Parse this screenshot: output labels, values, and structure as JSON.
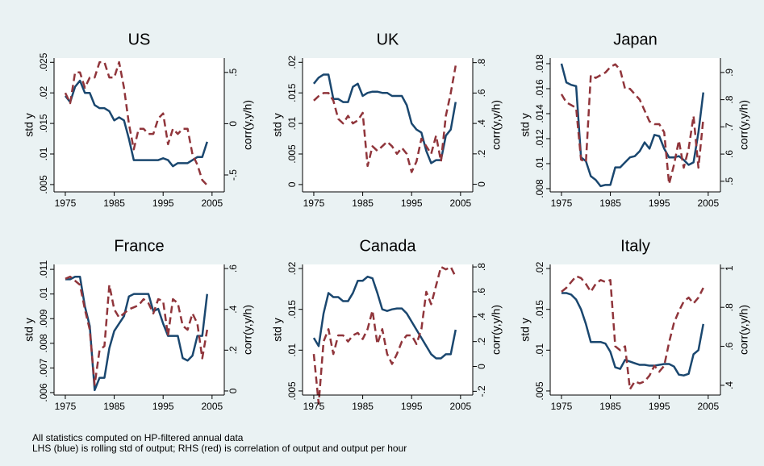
{
  "chart_data": [
    {
      "type": "line",
      "title": "US",
      "ylabel": "std y",
      "y2label": "corr(y,y/h)",
      "x": [
        1975,
        1976,
        1977,
        1978,
        1979,
        1980,
        1981,
        1982,
        1983,
        1984,
        1985,
        1986,
        1987,
        1988,
        1989,
        1990,
        1991,
        1992,
        1993,
        1994,
        1995,
        1996,
        1997,
        1998,
        1999,
        2000,
        2001,
        2002,
        2003,
        2004
      ],
      "xlim": [
        1972.7,
        2007.5
      ],
      "xticks": [
        1975,
        1985,
        1995,
        2005
      ],
      "ylim": [
        0.0038,
        0.0257
      ],
      "yticks": [
        {
          "value": 0.005,
          "label": ".005"
        },
        {
          "value": 0.01,
          "label": ".01"
        },
        {
          "value": 0.015,
          "label": ".015"
        },
        {
          "value": 0.02,
          "label": ".02"
        },
        {
          "value": 0.025,
          "label": ".025"
        }
      ],
      "y2lim": [
        -0.665,
        0.64
      ],
      "y2ticks": [
        {
          "value": -0.5,
          "label": "-.5"
        },
        0,
        {
          "value": 0.5,
          "label": ".5"
        }
      ],
      "series": [
        {
          "color": "#1a476f",
          "linestyle": "solid",
          "values": [
            0.0195,
            0.0185,
            0.021,
            0.022,
            0.02,
            0.02,
            0.018,
            0.0175,
            0.0175,
            0.017,
            0.0155,
            0.016,
            0.0155,
            0.0125,
            0.009,
            0.009,
            0.009,
            0.009,
            0.009,
            0.009,
            0.0093,
            0.009,
            0.008,
            0.0085,
            0.0085,
            0.0085,
            0.009,
            0.0095,
            0.0095,
            0.012
          ]
        },
        {
          "color": "#90353b",
          "linestyle": "dashed",
          "axis": "y2",
          "values": [
            0.3,
            0.2,
            0.5,
            0.5,
            0.35,
            0.45,
            0.45,
            0.6,
            0.6,
            0.45,
            0.45,
            0.6,
            0.35,
            0,
            -0.25,
            -0.05,
            -0.05,
            -0.1,
            -0.1,
            0.05,
            0.1,
            -0.2,
            -0.05,
            -0.1,
            -0.05,
            -0.05,
            -0.3,
            -0.4,
            -0.55,
            -0.6
          ]
        }
      ]
    },
    {
      "type": "line",
      "title": "UK",
      "ylabel": "std y",
      "y2label": "corr(y,y/h)",
      "x": [
        1975,
        1976,
        1977,
        1978,
        1979,
        1980,
        1981,
        1982,
        1983,
        1984,
        1985,
        1986,
        1987,
        1988,
        1989,
        1990,
        1991,
        1992,
        1993,
        1994,
        1995,
        1996,
        1997,
        1998,
        1999,
        2000,
        2001,
        2002,
        2003,
        2004
      ],
      "xlim": [
        1972.7,
        2007.5
      ],
      "xticks": [
        1975,
        1985,
        1995,
        2005
      ],
      "ylim": [
        -0.0012,
        0.0207
      ],
      "yticks": [
        0,
        {
          "value": 0.005,
          "label": ".005"
        },
        {
          "value": 0.01,
          "label": ".01"
        },
        {
          "value": 0.015,
          "label": ".015"
        },
        {
          "value": 0.02,
          "label": ".02"
        }
      ],
      "y2lim": [
        -0.05,
        0.83
      ],
      "y2ticks": [
        0,
        {
          "value": 0.2,
          "label": ".2"
        },
        {
          "value": 0.4,
          "label": ".4"
        },
        {
          "value": 0.6,
          "label": ".6"
        },
        {
          "value": 0.8,
          "label": ".8"
        }
      ],
      "series": [
        {
          "color": "#1a476f",
          "linestyle": "solid",
          "values": [
            0.0165,
            0.0175,
            0.018,
            0.018,
            0.014,
            0.014,
            0.0135,
            0.0135,
            0.016,
            0.0165,
            0.0145,
            0.015,
            0.0152,
            0.0152,
            0.015,
            0.015,
            0.0145,
            0.0145,
            0.0145,
            0.013,
            0.01,
            0.009,
            0.0085,
            0.0055,
            0.0035,
            0.004,
            0.004,
            0.008,
            0.009,
            0.0135
          ]
        },
        {
          "color": "#90353b",
          "linestyle": "dashed",
          "axis": "y2",
          "values": [
            0.55,
            0.58,
            0.6,
            0.6,
            0.55,
            0.43,
            0.4,
            0.45,
            0.4,
            0.42,
            0.47,
            0.12,
            0.25,
            0.22,
            0.25,
            0.28,
            0.25,
            0.2,
            0.24,
            0.2,
            0.08,
            0.15,
            0.3,
            0.25,
            0.2,
            0.32,
            0.15,
            0.45,
            0.6,
            0.78
          ]
        }
      ]
    },
    {
      "type": "line",
      "title": "Japan",
      "ylabel": "std y",
      "y2label": "corr(y,y/h)",
      "x": [
        1975,
        1976,
        1977,
        1978,
        1979,
        1980,
        1981,
        1982,
        1983,
        1984,
        1985,
        1986,
        1987,
        1988,
        1989,
        1990,
        1991,
        1992,
        1993,
        1994,
        1995,
        1996,
        1997,
        1998,
        1999,
        2000,
        2001,
        2002,
        2003,
        2004
      ],
      "xlim": [
        1972.7,
        2007.5
      ],
      "xticks": [
        1975,
        1985,
        1995,
        2005
      ],
      "ylim": [
        0.00774,
        0.01845
      ],
      "yticks": [
        {
          "value": 0.008,
          "label": ".008"
        },
        {
          "value": 0.01,
          "label": ".01"
        },
        {
          "value": 0.012,
          "label": ".012"
        },
        {
          "value": 0.014,
          "label": ".014"
        },
        {
          "value": 0.016,
          "label": ".016"
        },
        {
          "value": 0.018,
          "label": ".018"
        }
      ],
      "y2lim": [
        0.461,
        0.953
      ],
      "y2ticks": [
        {
          "value": 0.5,
          "label": ".5"
        },
        {
          "value": 0.6,
          "label": ".6"
        },
        {
          "value": 0.7,
          "label": ".7"
        },
        {
          "value": 0.8,
          "label": ".8"
        },
        {
          "value": 0.9,
          "label": ".9"
        }
      ],
      "series": [
        {
          "color": "#1a476f",
          "linestyle": "solid",
          "values": [
            0.018,
            0.0165,
            0.0163,
            0.0162,
            0.0105,
            0.0102,
            0.009,
            0.0087,
            0.0082,
            0.0083,
            0.0083,
            0.0097,
            0.0097,
            0.0101,
            0.0105,
            0.0106,
            0.011,
            0.0117,
            0.0112,
            0.0123,
            0.0122,
            0.0112,
            0.0105,
            0.0105,
            0.0106,
            0.0103,
            0.0099,
            0.0101,
            0.0125,
            0.0157
          ]
        },
        {
          "color": "#90353b",
          "linestyle": "dashed",
          "axis": "y2",
          "values": [
            0.82,
            0.79,
            0.78,
            0.77,
            0.58,
            0.57,
            0.89,
            0.88,
            0.89,
            0.9,
            0.92,
            0.93,
            0.91,
            0.84,
            0.84,
            0.82,
            0.8,
            0.76,
            0.72,
            0.71,
            0.71,
            0.68,
            0.49,
            0.56,
            0.65,
            0.55,
            0.62,
            0.74,
            0.55,
            0.73
          ]
        }
      ]
    },
    {
      "type": "line",
      "title": "France",
      "ylabel": "std y",
      "y2label": "corr(y,y/h)",
      "x": [
        1975,
        1976,
        1977,
        1978,
        1979,
        1980,
        1981,
        1982,
        1983,
        1984,
        1985,
        1986,
        1987,
        1988,
        1989,
        1990,
        1991,
        1992,
        1993,
        1994,
        1995,
        1996,
        1997,
        1998,
        1999,
        2000,
        2001,
        2002,
        2003,
        2004
      ],
      "xlim": [
        1972.7,
        2007.5
      ],
      "xticks": [
        1975,
        1985,
        1995,
        2005
      ],
      "ylim": [
        0.0059,
        0.0112
      ],
      "yticks": [
        {
          "value": 0.006,
          "label": ".006"
        },
        {
          "value": 0.007,
          "label": ".007"
        },
        {
          "value": 0.008,
          "label": ".008"
        },
        {
          "value": 0.009,
          "label": ".009"
        },
        {
          "value": 0.01,
          "label": ".01"
        },
        {
          "value": 0.011,
          "label": ".011"
        }
      ],
      "y2lim": [
        -0.02,
        0.62
      ],
      "y2ticks": [
        0,
        {
          "value": 0.2,
          "label": ".2"
        },
        {
          "value": 0.4,
          "label": ".4"
        },
        {
          "value": 0.6,
          "label": ".6"
        }
      ],
      "series": [
        {
          "color": "#1a476f",
          "linestyle": "solid",
          "values": [
            0.0106,
            0.0106,
            0.0107,
            0.0107,
            0.0095,
            0.0087,
            0.0061,
            0.0066,
            0.0066,
            0.0078,
            0.0085,
            0.0088,
            0.0091,
            0.0099,
            0.01,
            0.01,
            0.01,
            0.01,
            0.0093,
            0.0094,
            0.0088,
            0.0083,
            0.0083,
            0.0083,
            0.0074,
            0.0073,
            0.0075,
            0.0083,
            0.0083,
            0.01
          ]
        },
        {
          "color": "#90353b",
          "linestyle": "dashed",
          "axis": "y2",
          "values": [
            0.55,
            0.56,
            0.54,
            0.52,
            0.4,
            0.3,
            0.03,
            0.2,
            0.22,
            0.52,
            0.4,
            0.36,
            0.38,
            0.4,
            0.41,
            0.42,
            0.45,
            0.43,
            0.38,
            0.45,
            0.44,
            0.27,
            0.45,
            0.43,
            0.32,
            0.3,
            0.38,
            0.33,
            0.16,
            0.3
          ]
        }
      ]
    },
    {
      "type": "line",
      "title": "Canada",
      "ylabel": "std y",
      "y2label": "corr(y,y/h)",
      "x": [
        1975,
        1976,
        1977,
        1978,
        1979,
        1980,
        1981,
        1982,
        1983,
        1984,
        1985,
        1986,
        1987,
        1988,
        1989,
        1990,
        1991,
        1992,
        1993,
        1994,
        1995,
        1996,
        1997,
        1998,
        1999,
        2000,
        2001,
        2002,
        2003,
        2004
      ],
      "xlim": [
        1972.7,
        2007.5
      ],
      "xticks": [
        1975,
        1985,
        1995,
        2005
      ],
      "ylim": [
        0.0045,
        0.0205
      ],
      "yticks": [
        {
          "value": 0.005,
          "label": ".005"
        },
        {
          "value": 0.01,
          "label": ".01"
        },
        {
          "value": 0.015,
          "label": ".015"
        },
        {
          "value": 0.02,
          "label": ".02"
        }
      ],
      "y2lim": [
        -0.23,
        0.82
      ],
      "y2ticks": [
        {
          "value": -0.2,
          "label": "-.2"
        },
        0,
        {
          "value": 0.2,
          "label": ".2"
        },
        {
          "value": 0.4,
          "label": ".4"
        },
        {
          "value": 0.6,
          "label": ".6"
        },
        {
          "value": 0.8,
          "label": ".8"
        }
      ],
      "series": [
        {
          "color": "#1a476f",
          "linestyle": "solid",
          "values": [
            0.0115,
            0.0105,
            0.0145,
            0.017,
            0.0165,
            0.0165,
            0.016,
            0.016,
            0.017,
            0.0185,
            0.0185,
            0.019,
            0.0188,
            0.017,
            0.015,
            0.0148,
            0.015,
            0.0151,
            0.0151,
            0.0145,
            0.0135,
            0.0125,
            0.0115,
            0.0105,
            0.0095,
            0.009,
            0.009,
            0.0095,
            0.0095,
            0.0125
          ]
        },
        {
          "color": "#90353b",
          "linestyle": "dashed",
          "axis": "y2",
          "values": [
            0.1,
            -0.3,
            0.2,
            0.3,
            0.1,
            0.25,
            0.25,
            0.2,
            0.25,
            0.27,
            0.22,
            0.3,
            0.45,
            0.18,
            0.3,
            0.1,
            0.02,
            0.1,
            0.2,
            0.25,
            0.25,
            0.18,
            0.3,
            0.6,
            0.5,
            0.65,
            0.8,
            0.78,
            0.8,
            0.72
          ]
        }
      ]
    },
    {
      "type": "line",
      "title": "Italy",
      "ylabel": "std y",
      "y2label": "corr(y,y/h)",
      "x": [
        1975,
        1976,
        1977,
        1978,
        1979,
        1980,
        1981,
        1982,
        1983,
        1984,
        1985,
        1986,
        1987,
        1988,
        1989,
        1990,
        1991,
        1992,
        1993,
        1994,
        1995,
        1996,
        1997,
        1998,
        1999,
        2000,
        2001,
        2002,
        2003,
        2004
      ],
      "xlim": [
        1972.7,
        2007.5
      ],
      "xticks": [
        1975,
        1985,
        1995,
        2005
      ],
      "ylim": [
        0.0045,
        0.0205
      ],
      "yticks": [
        {
          "value": 0.005,
          "label": ".005"
        },
        {
          "value": 0.01,
          "label": ".01"
        },
        {
          "value": 0.015,
          "label": ".015"
        },
        {
          "value": 0.02,
          "label": ".02"
        }
      ],
      "y2lim": [
        0.35,
        1.02
      ],
      "y2ticks": [
        {
          "value": 0.4,
          "label": ".4"
        },
        {
          "value": 0.6,
          "label": ".6"
        },
        {
          "value": 0.8,
          "label": ".8"
        },
        1
      ],
      "series": [
        {
          "color": "#1a476f",
          "linestyle": "solid",
          "values": [
            0.017,
            0.017,
            0.0168,
            0.0162,
            0.015,
            0.0132,
            0.011,
            0.011,
            0.011,
            0.0108,
            0.0098,
            0.0079,
            0.0077,
            0.0088,
            0.0086,
            0.0084,
            0.0082,
            0.0082,
            0.0081,
            0.0081,
            0.0082,
            0.0083,
            0.0083,
            0.008,
            0.007,
            0.0069,
            0.0071,
            0.0095,
            0.01,
            0.0132
          ]
        },
        {
          "color": "#90353b",
          "linestyle": "dashed",
          "axis": "y2",
          "values": [
            0.88,
            0.9,
            0.93,
            0.96,
            0.95,
            0.92,
            0.88,
            0.92,
            0.94,
            0.93,
            0.94,
            0.6,
            0.58,
            0.6,
            0.38,
            0.42,
            0.41,
            0.42,
            0.45,
            0.5,
            0.47,
            0.5,
            0.62,
            0.72,
            0.78,
            0.83,
            0.85,
            0.82,
            0.85,
            0.9
          ]
        }
      ]
    }
  ],
  "notes": [
    "All statistics computed on HP-filtered annual data",
    "LHS (blue) is rolling std of output; RHS (red) is correlation of output and output per hour"
  ]
}
